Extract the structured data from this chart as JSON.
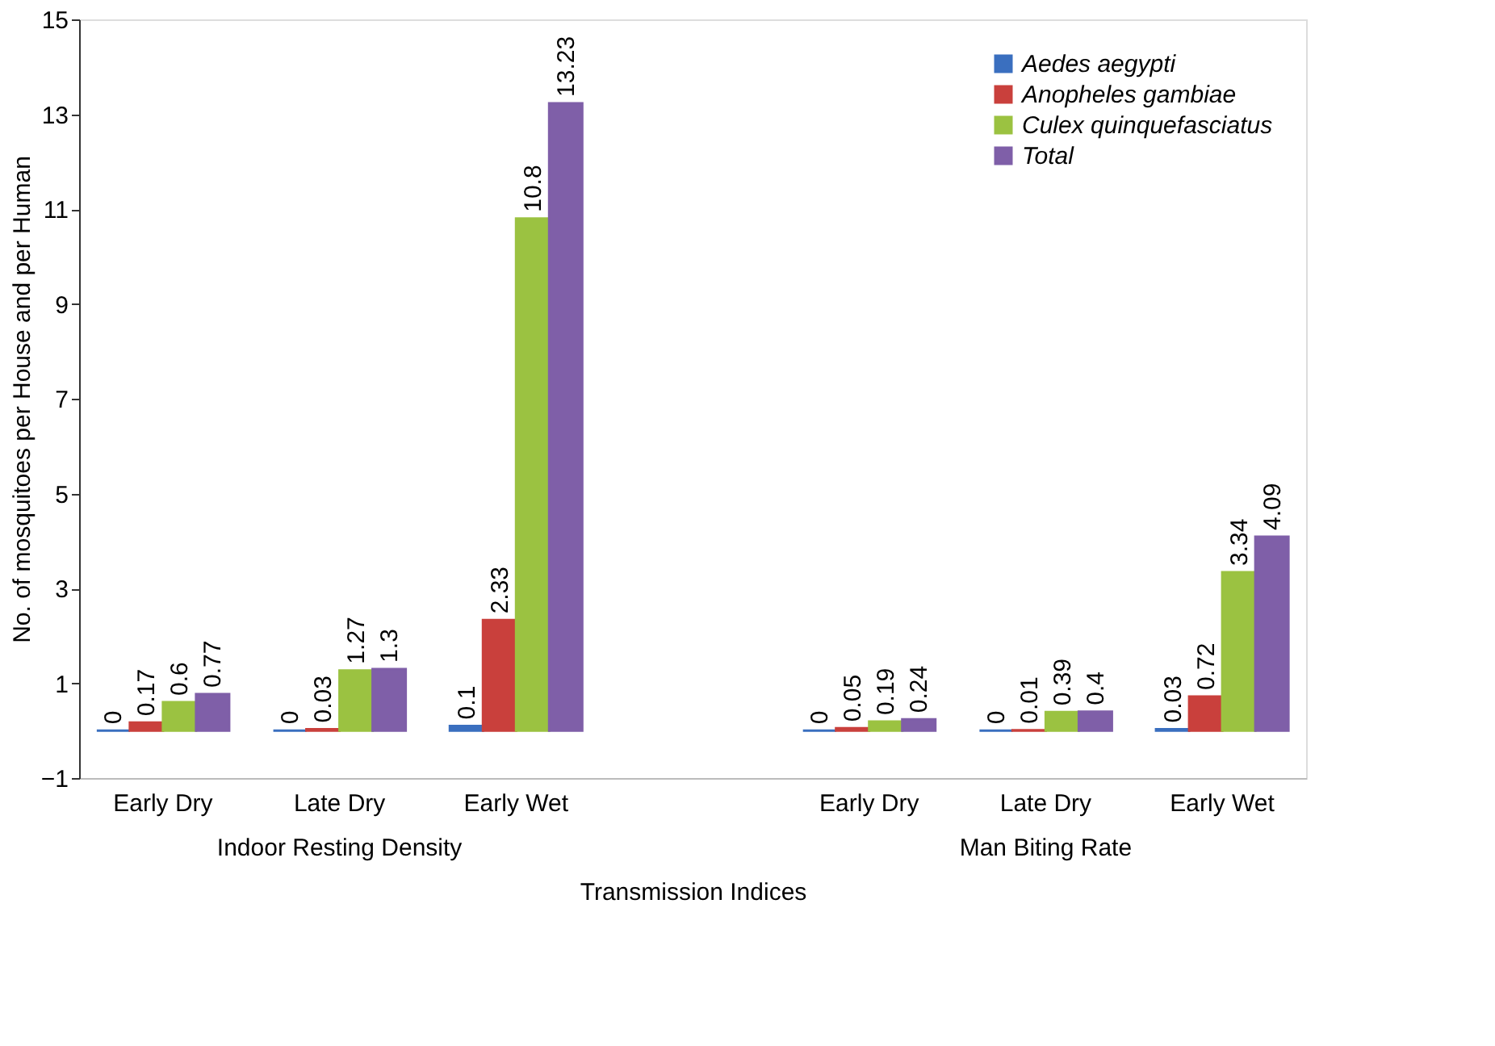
{
  "chart_data": {
    "type": "bar",
    "xlabel": "Transmission Indices",
    "ylabel": "No. of mosquitoes per House and per Human",
    "categories": [
      "Early Dry",
      "Late Dry",
      "Early Wet",
      "Early Dry",
      "Late Dry",
      "Early Wet"
    ],
    "series": [
      {
        "name": "Aedes aegypti",
        "color": "#3a6fbf",
        "values": [
          0,
          0,
          0.1,
          0,
          0,
          0.03
        ]
      },
      {
        "name": "Anopheles gambiae",
        "color": "#c9403c",
        "values": [
          0.17,
          0.03,
          2.33,
          0.05,
          0.01,
          0.72
        ]
      },
      {
        "name": "Culex quinquefasciatus",
        "color": "#9bc241",
        "values": [
          0.6,
          1.27,
          10.8,
          0.19,
          0.39,
          3.34
        ]
      },
      {
        "name": "Total",
        "color": "#7f5fa8",
        "values": [
          0.77,
          1.3,
          13.23,
          0.24,
          0.4,
          4.09
        ]
      }
    ],
    "annotations": [
      "Indoor Resting Density",
      "Man Biting Rate"
    ],
    "ylim": [
      -1,
      15
    ],
    "yticks": [
      -1,
      1,
      3,
      5,
      7,
      9,
      11,
      13,
      15
    ],
    "data_labels": true,
    "grid": false,
    "legend": "top right"
  }
}
